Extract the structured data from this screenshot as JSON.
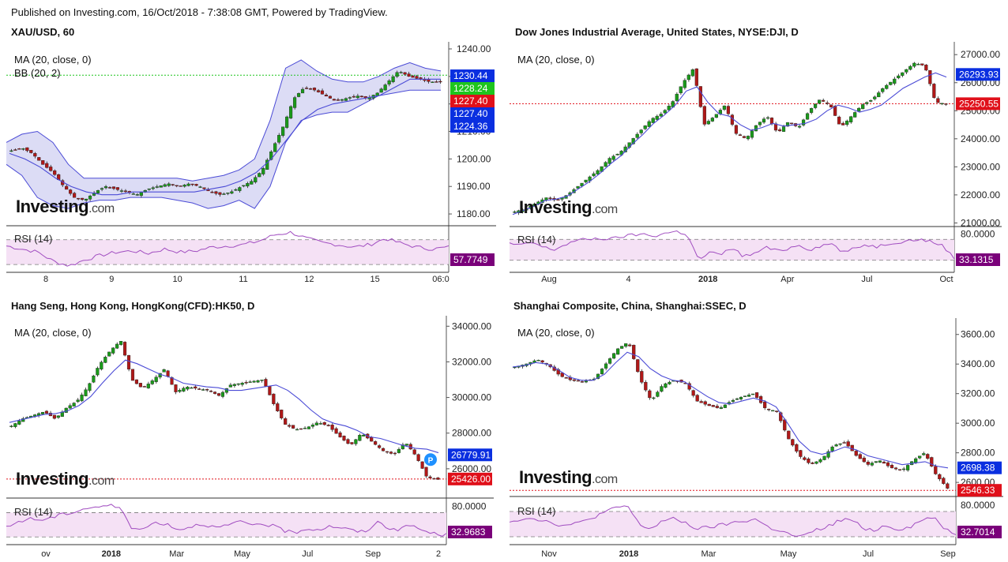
{
  "header": {
    "text": "Published on Investing.com, 16/Oct/2018 - 7:38:08 GMT, Powered by TradingView."
  },
  "logo": {
    "main": "Investing",
    "suffix": ".com"
  },
  "rsi_label": "RSI (14)",
  "colors": {
    "up": "#1a9a1a",
    "down": "#b01818",
    "ma": "#4b4bd6",
    "bb_fill": "#dcdcf5",
    "rsi_fill": "#f5e1f5",
    "rsi_line": "#a04cc0",
    "label_blue": "#0a2fe0",
    "label_green": "#1ec51e",
    "label_red": "#e0101a",
    "label_purple": "#7a007a"
  },
  "chart_data": [
    {
      "id": "gold",
      "type": "candlestick",
      "title": "XAU/USD, 60",
      "indicators": [
        "MA (20, close, 0)",
        "BB (20, 2)"
      ],
      "ylim": [
        1176,
        1242
      ],
      "yticks": [
        "1240.00",
        "1230.00",
        "1220.00",
        "1210.00",
        "1200.00",
        "1190.00",
        "1180.00"
      ],
      "ytick_values": [
        1240,
        1230,
        1220,
        1210,
        1200,
        1190,
        1180
      ],
      "xticks": [
        "8",
        "9",
        "10",
        "11",
        "12",
        "15",
        "06:0"
      ],
      "price_labels": [
        {
          "text": "1230.44",
          "value": 1230.44,
          "color": "blue"
        },
        {
          "text": "1228.24",
          "value": 1228.24,
          "color": "green"
        },
        {
          "text": "1227.40",
          "value": 1227.4,
          "color": "red"
        },
        {
          "text": "1227.40",
          "value": 1227.4,
          "color": "blue"
        },
        {
          "text": "1224.36",
          "value": 1224.36,
          "color": "blue"
        }
      ],
      "hline": 1230.44,
      "hline_color": "green",
      "rsi_value": "57.7749",
      "close_path": [
        1203,
        1204,
        1202,
        1198,
        1195,
        1190,
        1186,
        1185,
        1188,
        1190,
        1189,
        1188,
        1187,
        1189,
        1190,
        1191,
        1190,
        1191,
        1190,
        1188,
        1187,
        1188,
        1190,
        1192,
        1196,
        1204,
        1212,
        1222,
        1226,
        1225,
        1223,
        1221,
        1222,
        1223,
        1222,
        1224,
        1228,
        1232,
        1230,
        1229,
        1228,
        1228
      ],
      "bb_upper": [
        1206,
        1209,
        1210,
        1206,
        1198,
        1193,
        1193,
        1193,
        1193,
        1193,
        1193,
        1193,
        1192,
        1193,
        1194,
        1196,
        1200,
        1214,
        1233,
        1236,
        1232,
        1229,
        1228,
        1228,
        1230,
        1233,
        1235,
        1233,
        1232
      ],
      "bb_lower": [
        1198,
        1194,
        1186,
        1183,
        1182,
        1184,
        1185,
        1185,
        1186,
        1186,
        1186,
        1185,
        1184,
        1182,
        1183,
        1185,
        1182,
        1190,
        1206,
        1214,
        1216,
        1217,
        1217,
        1220,
        1223,
        1224,
        1225,
        1225,
        1225
      ],
      "ma": [
        1202,
        1200,
        1197,
        1193,
        1190,
        1188,
        1187,
        1187,
        1188,
        1188,
        1188,
        1188,
        1188,
        1189,
        1190,
        1192,
        1195,
        1200,
        1207,
        1214,
        1218,
        1220,
        1221,
        1222,
        1223,
        1226,
        1229,
        1229,
        1229
      ],
      "rsi_range": [
        20,
        90
      ],
      "rsi_bands": [
        30,
        70
      ],
      "rsi": [
        60,
        55,
        50,
        35,
        28,
        38,
        45,
        50,
        52,
        48,
        55,
        50,
        52,
        58,
        60,
        62,
        68,
        78,
        82,
        72,
        65,
        62,
        58,
        62,
        72,
        64,
        58,
        55,
        58
      ]
    },
    {
      "id": "dji",
      "type": "candlestick",
      "title": "Dow Jones Industrial Average, United States, NYSE:DJI, D",
      "indicators": [
        "MA (20, close, 0)"
      ],
      "ylim": [
        20900,
        27400
      ],
      "yticks": [
        "27000.00",
        "26000.00",
        "25000.00",
        "24000.00",
        "23000.00",
        "22000.00",
        "21000.00"
      ],
      "ytick_values": [
        27000,
        26000,
        25000,
        24000,
        23000,
        22000,
        21000
      ],
      "xticks": [
        "Aug",
        "4",
        "2018",
        "Apr",
        "Jul",
        "Oct"
      ],
      "rsi_ticks": [
        "80.0000"
      ],
      "price_labels": [
        {
          "text": "26293.93",
          "value": 26293.93,
          "color": "blue"
        },
        {
          "text": "25250.55",
          "value": 25250.55,
          "color": "red"
        }
      ],
      "hline": 25250.55,
      "hline_color": "red",
      "rsi_value": "33.1315",
      "close_path": [
        21400,
        21500,
        21700,
        21900,
        21800,
        22000,
        22300,
        22600,
        22900,
        23300,
        23500,
        23900,
        24300,
        24700,
        24900,
        25300,
        26000,
        26500,
        24500,
        24800,
        25200,
        24200,
        24000,
        24500,
        24800,
        24200,
        24600,
        24400,
        25000,
        25400,
        25200,
        24400,
        24800,
        25200,
        25400,
        25800,
        26100,
        26400,
        26700,
        26600,
        25300,
        25250
      ],
      "ma": [
        21300,
        21450,
        21600,
        21800,
        21850,
        21950,
        22200,
        22450,
        22750,
        23100,
        23400,
        23800,
        24150,
        24550,
        24850,
        25200,
        25700,
        25850,
        25300,
        24900,
        24800,
        24500,
        24300,
        24400,
        24550,
        24450,
        24500,
        24550,
        24700,
        25000,
        25200,
        25100,
        24950,
        25050,
        25200,
        25500,
        25800,
        26000,
        26200,
        26350,
        26200
      ],
      "rsi_range": [
        10,
        90
      ],
      "rsi_bands": [
        30,
        70
      ],
      "rsi": [
        62,
        58,
        65,
        55,
        50,
        60,
        68,
        70,
        72,
        70,
        75,
        78,
        80,
        76,
        82,
        85,
        80,
        30,
        45,
        40,
        55,
        38,
        42,
        55,
        48,
        52,
        60,
        50,
        58,
        62,
        45,
        52,
        60,
        56,
        62,
        65,
        68,
        70,
        65,
        58,
        33
      ]
    },
    {
      "id": "hsi",
      "type": "candlestick",
      "title": "Hang Seng, Hong Kong, HongKong(CFD):HK50, D",
      "indicators": [
        "MA (20, close, 0)"
      ],
      "ylim": [
        24400,
        34500
      ],
      "yticks": [
        "34000.00",
        "32000.00",
        "30000.00",
        "28000.00",
        "26000.00"
      ],
      "ytick_values": [
        34000,
        32000,
        30000,
        28000,
        26000
      ],
      "xticks": [
        "ov",
        "2018",
        "Mar",
        "May",
        "Jul",
        "Sep",
        "2"
      ],
      "rsi_ticks": [
        "80.0000"
      ],
      "price_labels": [
        {
          "text": "26779.91",
          "value": 26779.91,
          "color": "blue"
        },
        {
          "text": "25426.00",
          "value": 25426,
          "color": "red"
        }
      ],
      "hline": 25426,
      "hline_color": "red",
      "rsi_value": "32.9683",
      "marker_p": "P",
      "close_path": [
        28400,
        28800,
        29000,
        29200,
        28800,
        29400,
        29800,
        30600,
        31800,
        32600,
        33200,
        31000,
        30500,
        31000,
        31600,
        30300,
        30600,
        30500,
        30400,
        30100,
        30700,
        30800,
        30900,
        31000,
        29600,
        28500,
        28200,
        28300,
        28600,
        28400,
        27800,
        27300,
        28000,
        27500,
        27000,
        26800,
        27500,
        26700,
        25500,
        25400
      ],
      "ma": [
        28600,
        28750,
        28900,
        29050,
        29100,
        29250,
        29550,
        30050,
        30800,
        31500,
        32100,
        31900,
        31600,
        31300,
        31100,
        30800,
        30700,
        30600,
        30550,
        30400,
        30400,
        30500,
        30600,
        30700,
        30400,
        29900,
        29300,
        28800,
        28550,
        28400,
        28150,
        27800,
        27700,
        27500,
        27300,
        27150,
        27100,
        26900
      ],
      "rsi_range": [
        20,
        90
      ],
      "rsi_bands": [
        30,
        70
      ],
      "rsi": [
        45,
        55,
        60,
        58,
        62,
        68,
        72,
        78,
        80,
        82,
        75,
        40,
        45,
        55,
        50,
        42,
        48,
        52,
        45,
        48,
        55,
        50,
        52,
        48,
        40,
        38,
        44,
        42,
        48,
        45,
        40,
        38,
        55,
        45,
        42,
        50,
        40,
        35,
        33
      ]
    },
    {
      "id": "ssec",
      "type": "candlestick",
      "title": "Shanghai Composite, China, Shanghai:SSEC, D",
      "indicators": [
        "MA (20, close, 0)"
      ],
      "ylim": [
        2510,
        3700
      ],
      "yticks": [
        "3600.00",
        "3400.00",
        "3200.00",
        "3000.00",
        "2800.00",
        "2600.00"
      ],
      "ytick_values": [
        3600,
        3400,
        3200,
        3000,
        2800,
        2600
      ],
      "xticks": [
        "Nov",
        "2018",
        "Mar",
        "May",
        "Jul",
        "Sep"
      ],
      "rsi_ticks": [
        "80.0000"
      ],
      "price_labels": [
        {
          "text": "2698.38",
          "value": 2698.38,
          "color": "blue"
        },
        {
          "text": "2546.33",
          "value": 2546.33,
          "color": "red"
        }
      ],
      "hline": 2546.33,
      "hline_color": "red",
      "rsi_value": "32.7014",
      "close_path": [
        3380,
        3400,
        3430,
        3390,
        3320,
        3290,
        3280,
        3300,
        3400,
        3500,
        3550,
        3300,
        3150,
        3260,
        3290,
        3270,
        3150,
        3120,
        3100,
        3150,
        3180,
        3200,
        3100,
        3080,
        2900,
        2780,
        2720,
        2760,
        2850,
        2870,
        2780,
        2720,
        2750,
        2700,
        2680,
        2750,
        2800,
        2650,
        2560
      ],
      "ma": [
        3380,
        3390,
        3410,
        3400,
        3360,
        3310,
        3290,
        3290,
        3330,
        3410,
        3480,
        3450,
        3370,
        3320,
        3290,
        3280,
        3230,
        3180,
        3140,
        3130,
        3150,
        3170,
        3150,
        3110,
        3000,
        2880,
        2810,
        2790,
        2810,
        2840,
        2820,
        2780,
        2760,
        2740,
        2720,
        2730,
        2740,
        2710,
        2698
      ],
      "rsi_range": [
        20,
        90
      ],
      "rsi_bands": [
        30,
        70
      ],
      "rsi": [
        55,
        58,
        60,
        55,
        50,
        48,
        52,
        60,
        68,
        75,
        80,
        50,
        42,
        55,
        58,
        52,
        42,
        45,
        48,
        52,
        55,
        58,
        45,
        40,
        32,
        30,
        40,
        45,
        55,
        58,
        45,
        40,
        48,
        42,
        45,
        55,
        62,
        45,
        33
      ]
    }
  ]
}
